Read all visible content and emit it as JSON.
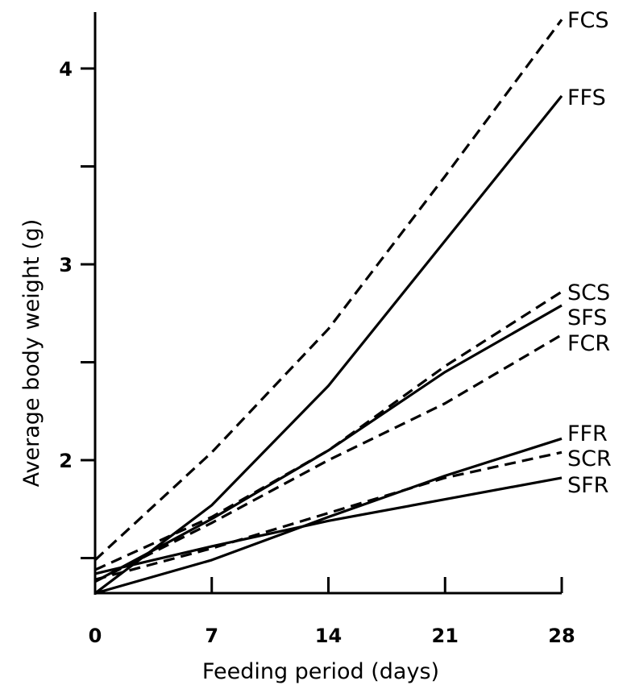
{
  "chart_data": {
    "type": "line",
    "xlabel": "Feeding period (days)",
    "ylabel": "Average body weight (g)",
    "x": [
      0,
      7,
      14,
      21,
      28
    ],
    "x_ticks": [
      0,
      7,
      14,
      21,
      28
    ],
    "y_ticks": [
      1.5,
      2,
      2.5,
      3,
      3.5,
      4
    ],
    "y_tick_labels": [
      "",
      "2",
      "",
      "3",
      "",
      "4"
    ],
    "xlim": [
      0,
      28
    ],
    "ylim": [
      1.3,
      4.3
    ],
    "grid": false,
    "legend": "none (series labels at line ends)",
    "series": [
      {
        "name": "FCS",
        "style": "dashed",
        "values": [
          1.49,
          2.04,
          2.67,
          3.45,
          4.25
        ]
      },
      {
        "name": "FFS",
        "style": "solid",
        "values": [
          1.32,
          1.77,
          2.38,
          3.12,
          3.86
        ]
      },
      {
        "name": "SCS",
        "style": "dashed",
        "values": [
          1.44,
          1.71,
          2.05,
          2.48,
          2.86
        ]
      },
      {
        "name": "SFS",
        "style": "solid",
        "values": [
          1.38,
          1.7,
          2.05,
          2.45,
          2.79
        ]
      },
      {
        "name": "FCR",
        "style": "dashed",
        "values": [
          1.38,
          1.68,
          2.0,
          2.29,
          2.64
        ]
      },
      {
        "name": "FFR",
        "style": "solid",
        "values": [
          1.32,
          1.49,
          1.71,
          1.92,
          2.11
        ]
      },
      {
        "name": "SCR",
        "style": "dashed",
        "values": [
          1.39,
          1.55,
          1.73,
          1.91,
          2.04
        ]
      },
      {
        "name": "SFR",
        "style": "solid",
        "values": [
          1.42,
          1.56,
          1.69,
          1.8,
          1.91
        ]
      }
    ]
  }
}
